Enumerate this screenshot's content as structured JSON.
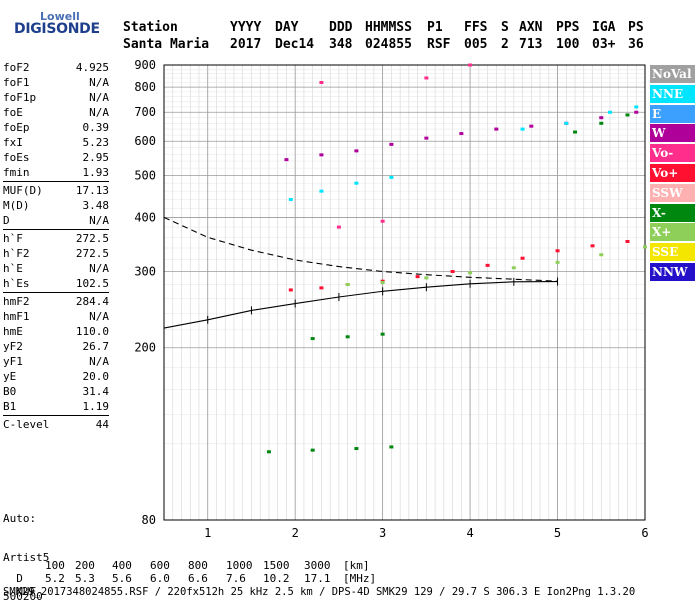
{
  "logo": {
    "top": "Lowell",
    "main": "DIGISONDE"
  },
  "header": {
    "columns": [
      "Station",
      "YYYY",
      "DAY",
      "DDD",
      "HHMMSS",
      "P1",
      "FFS",
      "S",
      "AXN",
      "PPS",
      "IGA",
      "PS"
    ],
    "values": [
      "Santa Maria",
      "2017",
      "Dec14",
      "348",
      "024855",
      "RSF",
      "005",
      "2",
      "713",
      "100",
      "03+",
      "36"
    ]
  },
  "params": [
    {
      "group": [
        {
          "name": "foF2",
          "value": "4.925"
        },
        {
          "name": "foF1",
          "value": "N/A"
        },
        {
          "name": "foF1p",
          "value": "N/A"
        },
        {
          "name": "foE",
          "value": "N/A"
        },
        {
          "name": "foEp",
          "value": "0.39"
        },
        {
          "name": "fxI",
          "value": "5.23"
        },
        {
          "name": "foEs",
          "value": "2.95"
        },
        {
          "name": "fmin",
          "value": "1.93"
        }
      ]
    },
    {
      "group": [
        {
          "name": "MUF(D)",
          "value": "17.13"
        },
        {
          "name": "M(D)",
          "value": "3.48"
        },
        {
          "name": "D",
          "value": "N/A"
        }
      ]
    },
    {
      "group": [
        {
          "name": "h`F",
          "value": "272.5"
        },
        {
          "name": "h`F2",
          "value": "272.5"
        },
        {
          "name": "h`E",
          "value": "N/A"
        },
        {
          "name": "h`Es",
          "value": "102.5"
        }
      ]
    },
    {
      "group": [
        {
          "name": "hmF2",
          "value": "284.4"
        },
        {
          "name": "hmF1",
          "value": "N/A"
        },
        {
          "name": "hmE",
          "value": "110.0"
        },
        {
          "name": "yF2",
          "value": "26.7"
        },
        {
          "name": "yF1",
          "value": "N/A"
        },
        {
          "name": "yE",
          "value": "20.0"
        },
        {
          "name": "B0",
          "value": "31.4"
        },
        {
          "name": "B1",
          "value": "1.19"
        }
      ]
    },
    {
      "group": [
        {
          "name": "C-level",
          "value": "44"
        }
      ]
    }
  ],
  "autoscale": {
    "l1": "Auto:",
    "l2": "Artist5",
    "l3": "500200"
  },
  "legend": [
    {
      "label": "NoVal",
      "color": "#a0a0a0"
    },
    {
      "label": "NNE",
      "color": "#00e5ff"
    },
    {
      "label": "E",
      "color": "#3ca0ff"
    },
    {
      "label": "W",
      "color": "#b0009a"
    },
    {
      "label": "Vo-",
      "color": "#ff2e8c"
    },
    {
      "label": "Vo+",
      "color": "#ff1030"
    },
    {
      "label": "SSW",
      "color": "#ffb0b0"
    },
    {
      "label": "X-",
      "color": "#00870f"
    },
    {
      "label": "X+",
      "color": "#8ecf5a"
    },
    {
      "label": "SSE",
      "color": "#f5e600"
    },
    {
      "label": "NNW",
      "color": "#2410c8"
    }
  ],
  "footer": {
    "d_label": "D",
    "d_values": [
      "100",
      "200",
      "400",
      "600",
      "800",
      "1000",
      "1500",
      "3000"
    ],
    "d_unit": "[km]",
    "muf_label": "MUF",
    "muf_values": [
      "5.2",
      "5.3",
      "5.6",
      "6.0",
      "6.6",
      "7.6",
      "10.2",
      "17.1"
    ],
    "muf_unit": "[MHz]",
    "line": "SMK29_2017348024855.RSF / 220fx512h 25 kHz 2.5 km / DPS-4D SMK29 129 / 29.7 S 306.3 E Ion2Png 1.3.20"
  },
  "chart_data": {
    "type": "scatter",
    "title": "",
    "xlabel": "",
    "ylabel": "",
    "xlim": [
      0.5,
      6
    ],
    "ylim": [
      80,
      900
    ],
    "yscale": "log",
    "xticks": [
      1,
      2,
      3,
      4,
      5,
      6
    ],
    "yticks": [
      80,
      200,
      300,
      400,
      500,
      600,
      700,
      800,
      900
    ],
    "grid": true,
    "legend_position": "right",
    "series": [
      {
        "name": "Vo+",
        "points": [
          [
            1.95,
            272
          ],
          [
            2.3,
            275
          ],
          [
            2.6,
            280
          ],
          [
            3.0,
            285
          ],
          [
            3.4,
            292
          ],
          [
            3.8,
            300
          ],
          [
            4.2,
            310
          ],
          [
            4.6,
            322
          ],
          [
            5.0,
            335
          ],
          [
            5.4,
            344
          ],
          [
            5.8,
            352
          ]
        ]
      },
      {
        "name": "X+",
        "points": [
          [
            2.6,
            280
          ],
          [
            3.0,
            283
          ],
          [
            3.5,
            290
          ],
          [
            4.0,
            298
          ],
          [
            4.5,
            306
          ],
          [
            5.0,
            315
          ],
          [
            5.5,
            328
          ],
          [
            6.0,
            342
          ]
        ]
      },
      {
        "name": "W",
        "points": [
          [
            1.9,
            544
          ],
          [
            2.3,
            558
          ],
          [
            2.7,
            570
          ],
          [
            3.1,
            590
          ],
          [
            3.5,
            610
          ],
          [
            3.9,
            625
          ],
          [
            4.3,
            640
          ],
          [
            4.7,
            650
          ],
          [
            5.1,
            660
          ],
          [
            5.5,
            680
          ],
          [
            5.9,
            700
          ]
        ]
      },
      {
        "name": "X-",
        "points": [
          [
            2.2,
            210
          ],
          [
            2.6,
            212
          ],
          [
            3.0,
            215
          ],
          [
            1.7,
            115
          ],
          [
            2.2,
            116
          ],
          [
            2.7,
            117
          ],
          [
            3.1,
            118
          ],
          [
            5.2,
            630
          ],
          [
            5.5,
            660
          ],
          [
            5.8,
            690
          ]
        ]
      },
      {
        "name": "NNE",
        "points": [
          [
            1.95,
            440
          ],
          [
            2.3,
            460
          ],
          [
            2.7,
            480
          ],
          [
            3.1,
            495
          ],
          [
            4.6,
            640
          ],
          [
            5.1,
            660
          ],
          [
            5.6,
            700
          ],
          [
            5.9,
            720
          ]
        ]
      },
      {
        "name": "Vo-",
        "points": [
          [
            2.3,
            820
          ],
          [
            3.5,
            840
          ],
          [
            4.0,
            900
          ],
          [
            2.5,
            380
          ],
          [
            3.0,
            392
          ]
        ]
      }
    ],
    "lines": [
      {
        "name": "profile",
        "style": "solid",
        "points": [
          [
            0.5,
            222
          ],
          [
            1.0,
            232
          ],
          [
            1.5,
            244
          ],
          [
            2.0,
            253
          ],
          [
            2.5,
            262
          ],
          [
            3.0,
            270
          ],
          [
            3.5,
            276
          ],
          [
            4.0,
            281
          ],
          [
            4.5,
            284
          ],
          [
            5.0,
            284.4
          ]
        ]
      },
      {
        "name": "dashed",
        "style": "dashed",
        "points": [
          [
            0.5,
            400
          ],
          [
            1.0,
            360
          ],
          [
            1.5,
            336
          ],
          [
            2.0,
            319
          ],
          [
            2.5,
            308
          ],
          [
            3.0,
            300
          ],
          [
            3.5,
            295
          ],
          [
            4.0,
            291
          ],
          [
            4.5,
            288
          ],
          [
            5.0,
            285
          ]
        ]
      }
    ]
  }
}
